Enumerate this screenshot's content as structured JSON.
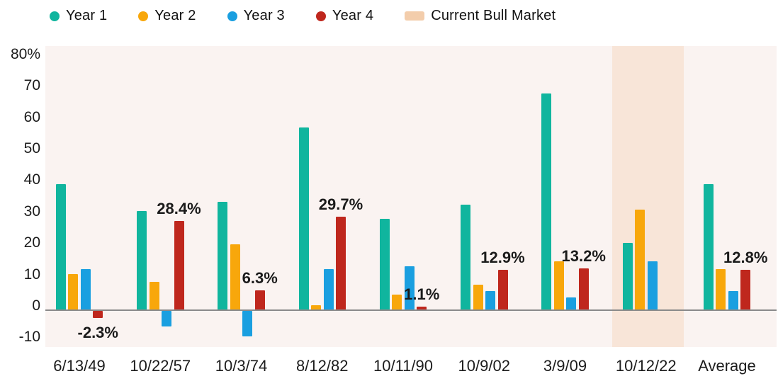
{
  "chart_data": {
    "type": "bar",
    "title": "",
    "xlabel": "",
    "ylabel": "",
    "categories": [
      "6/13/49",
      "10/22/57",
      "10/3/74",
      "8/12/82",
      "10/11/90",
      "10/9/02",
      "3/9/09",
      "10/12/22",
      "Average"
    ],
    "series": [
      {
        "name": "Year 1",
        "color": "#10B59E",
        "values": [
          40,
          31.5,
          34.5,
          58,
          29,
          33.5,
          69,
          21.5,
          40
        ]
      },
      {
        "name": "Year 2",
        "color": "#F8A70B",
        "values": [
          11.5,
          9,
          21,
          1.5,
          5,
          8,
          15.5,
          32,
          13
        ]
      },
      {
        "name": "Year 3",
        "color": "#1A9FE0",
        "values": [
          13,
          -5,
          -8,
          13,
          14,
          6,
          4,
          15.5,
          6
        ]
      },
      {
        "name": "Year 4",
        "color": "#BF271D",
        "values": [
          -2.3,
          28.4,
          6.3,
          29.7,
          1.1,
          12.9,
          13.2,
          null,
          12.8
        ]
      }
    ],
    "value_labels": [
      {
        "category": "6/13/49",
        "series": "Year 4",
        "text": "-2.3%",
        "placement": "below"
      },
      {
        "category": "10/22/57",
        "series": "Year 4",
        "text": "28.4%",
        "placement": "above"
      },
      {
        "category": "10/3/74",
        "series": "Year 4",
        "text": "6.3%",
        "placement": "above"
      },
      {
        "category": "8/12/82",
        "series": "Year 4",
        "text": "29.7%",
        "placement": "above"
      },
      {
        "category": "10/11/90",
        "series": "Year 4",
        "text": "1.1%",
        "placement": "above"
      },
      {
        "category": "10/9/02",
        "series": "Year 4",
        "text": "12.9%",
        "placement": "above"
      },
      {
        "category": "3/9/09",
        "series": "Year 4",
        "text": "13.2%",
        "placement": "above"
      },
      {
        "category": "Average",
        "series": "Year 4",
        "text": "12.8%",
        "placement": "above"
      }
    ],
    "yticks": [
      {
        "value": 80,
        "label": "80%"
      },
      {
        "value": 70,
        "label": "70"
      },
      {
        "value": 60,
        "label": "60"
      },
      {
        "value": 50,
        "label": "50"
      },
      {
        "value": 40,
        "label": "40"
      },
      {
        "value": 30,
        "label": "30"
      },
      {
        "value": 20,
        "label": "20"
      },
      {
        "value": 10,
        "label": "10"
      },
      {
        "value": 0,
        "label": "0"
      },
      {
        "value": -10,
        "label": "-10"
      }
    ],
    "ylim": [
      -10,
      80
    ],
    "grid": false,
    "legend_position": "top",
    "legend": [
      "Year 1",
      "Year 2",
      "Year 3",
      "Year 4",
      "Current Bull Market"
    ],
    "highlight": {
      "category": "10/12/22",
      "name": "Current Bull Market",
      "band_color": "#F8E5D8",
      "legend_swatch_color": "#F3CDAB"
    },
    "colors": {
      "plot_background": "#FAF3F1",
      "axis_line": "#8A8A8A",
      "text": "#1C1C1C"
    }
  }
}
